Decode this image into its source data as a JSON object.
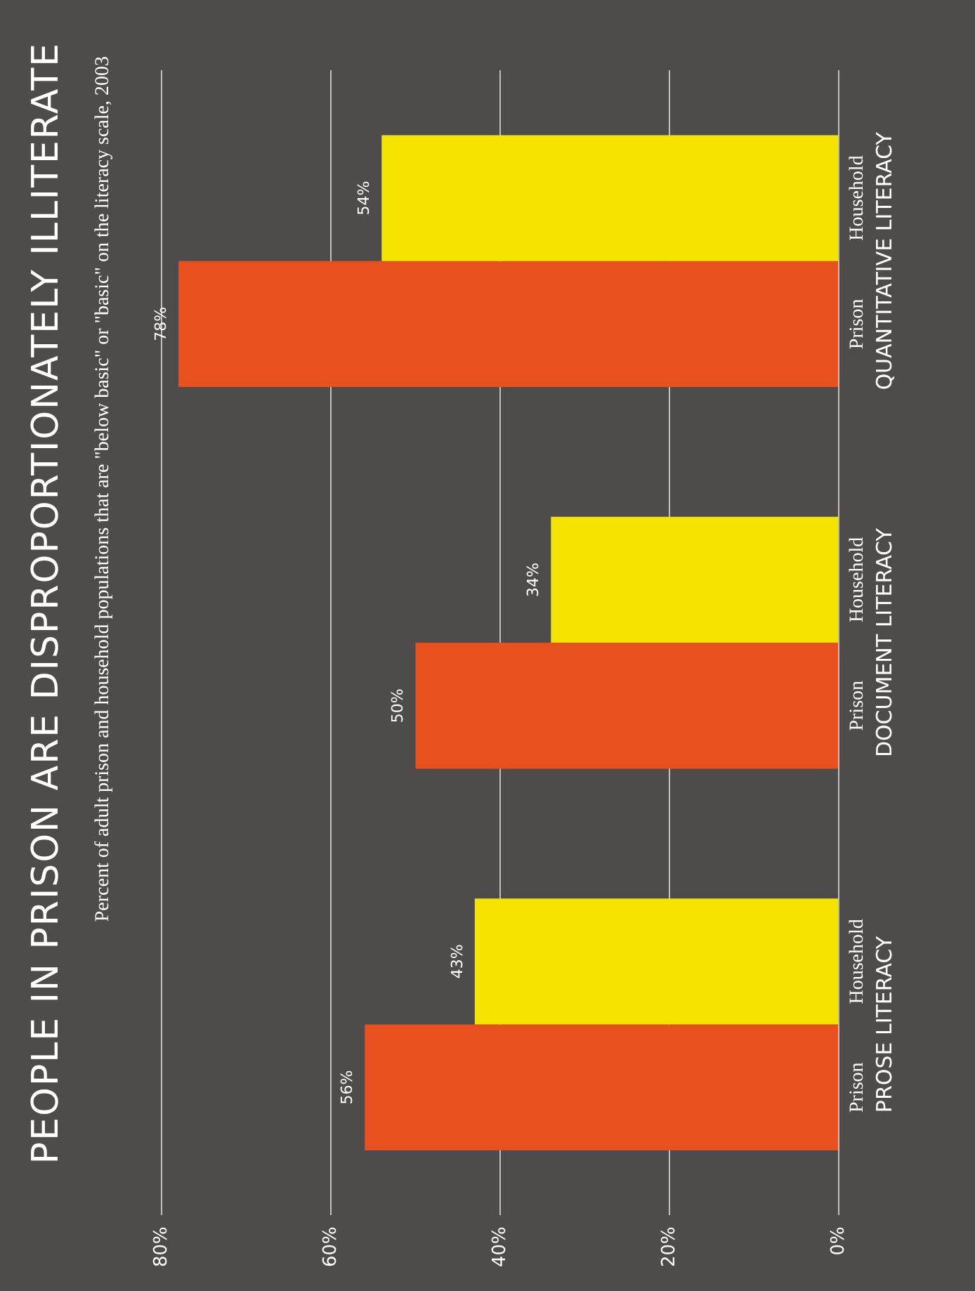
{
  "chart_data": {
    "type": "bar",
    "orientation": "horizontal",
    "title": "PEOPLE IN PRISON ARE DISPROPORTIONATELY ILLITERATE",
    "subtitle": "Percent of adult prison and household populations that are \"below basic\" or \"basic\" on the literacy scale, 2003",
    "categories": [
      "QUANTITATIVE LITERACY",
      "DOCUMENT LITERACY",
      "PROSE LITERACY"
    ],
    "series": [
      {
        "name": "Household",
        "color": "#f5e400",
        "values": [
          54,
          34,
          43
        ],
        "value_labels": [
          "54%",
          "34%",
          "43%"
        ]
      },
      {
        "name": "Prison",
        "color": "#e8501e",
        "values": [
          78,
          50,
          56
        ],
        "value_labels": [
          "78%",
          "50%",
          "56%"
        ]
      }
    ],
    "xlim": [
      80,
      0
    ],
    "xticks": [
      {
        "value": 0,
        "label": "0%"
      },
      {
        "value": 20,
        "label": "20%"
      },
      {
        "value": 40,
        "label": "40%"
      },
      {
        "value": 60,
        "label": "60%"
      },
      {
        "value": 80,
        "label": "80%"
      }
    ],
    "grid": "x"
  }
}
